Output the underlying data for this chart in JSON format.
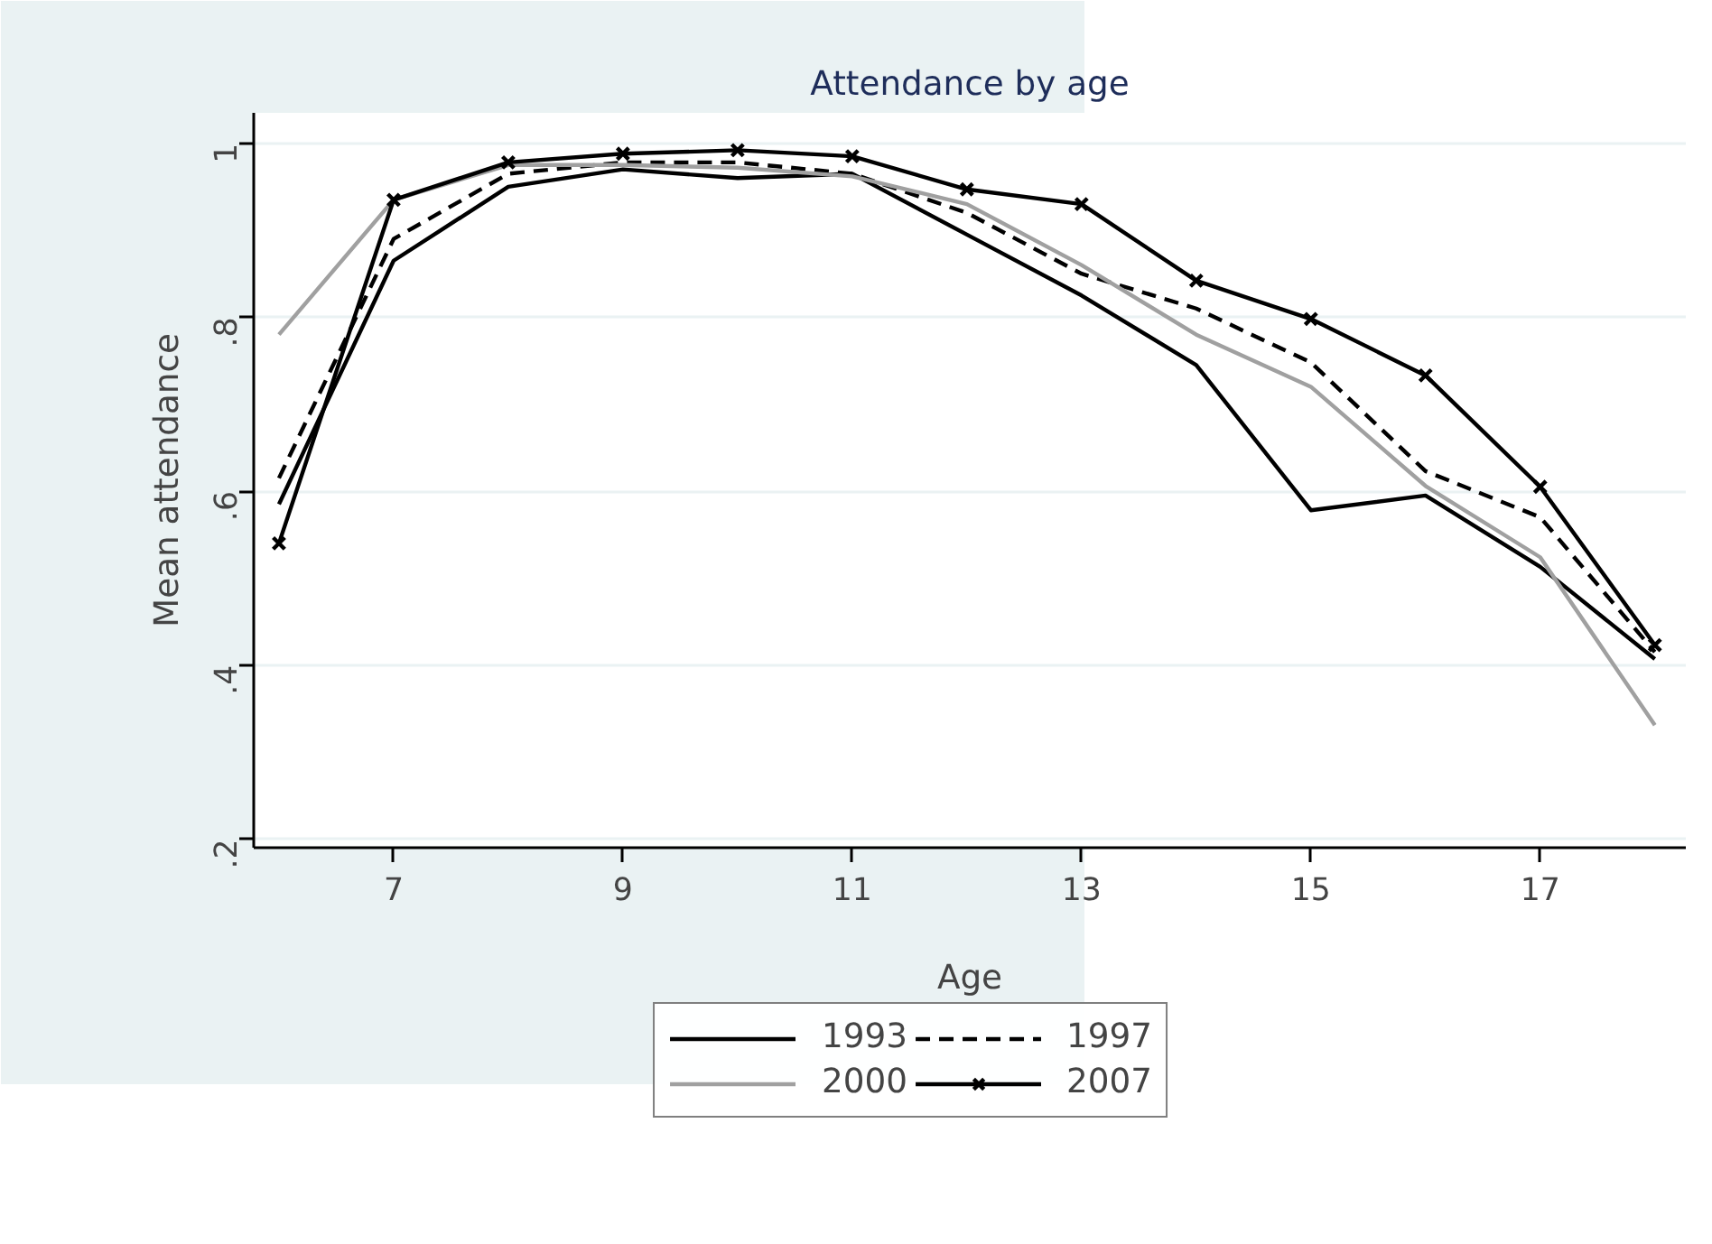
{
  "chart_data": {
    "type": "line",
    "title": "Attendance by age",
    "xlabel": "Age",
    "ylabel": "Mean attendance",
    "x": [
      6,
      7,
      8,
      9,
      10,
      11,
      12,
      13,
      14,
      15,
      16,
      17,
      18
    ],
    "series": [
      {
        "name": "1993",
        "color": "#000000",
        "line_style": "solid",
        "marker": "none",
        "values": [
          0.585,
          0.865,
          0.95,
          0.97,
          0.96,
          0.965,
          0.895,
          0.825,
          0.745,
          0.578,
          0.595,
          0.513,
          0.407
        ]
      },
      {
        "name": "1997",
        "color": "#000000",
        "line_style": "dashed",
        "marker": "none",
        "values": [
          0.615,
          0.89,
          0.965,
          0.978,
          0.978,
          0.965,
          0.92,
          0.85,
          0.81,
          0.748,
          0.623,
          0.57,
          0.415
        ]
      },
      {
        "name": "2000",
        "color": "#a0a0a0",
        "line_style": "solid",
        "marker": "none",
        "values": [
          0.78,
          0.935,
          0.975,
          0.975,
          0.972,
          0.962,
          0.93,
          0.86,
          0.78,
          0.72,
          0.606,
          0.524,
          0.331
        ]
      },
      {
        "name": "2007",
        "color": "#000000",
        "line_style": "solid",
        "marker": "cross",
        "values": [
          0.54,
          0.935,
          0.978,
          0.988,
          0.992,
          0.985,
          0.947,
          0.93,
          0.842,
          0.798,
          0.733,
          0.605,
          0.423
        ]
      }
    ],
    "xlim": [
      5.78,
      18.27
    ],
    "ylim": [
      0.19,
      1.035
    ],
    "xticks": [
      7,
      9,
      11,
      13,
      15,
      17
    ],
    "yticks": [
      {
        "value": 0.2,
        "label": ".2"
      },
      {
        "value": 0.4,
        "label": ".4"
      },
      {
        "value": 0.6,
        "label": ".6"
      },
      {
        "value": 0.8,
        "label": ".8"
      },
      {
        "value": 1,
        "label": "1"
      }
    ],
    "grid": "y",
    "legend": "bottom"
  }
}
